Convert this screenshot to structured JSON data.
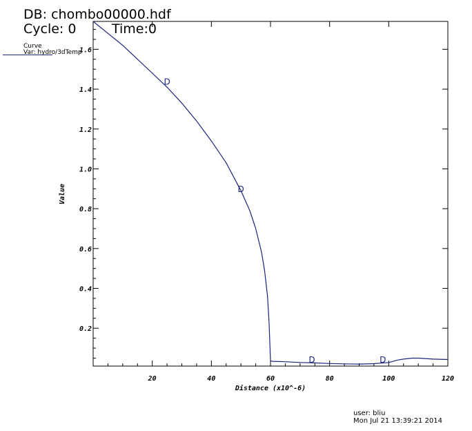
{
  "header": {
    "db": "DB: chombo00000.hdf",
    "cycle": "Cycle: 0",
    "time": "Time:0"
  },
  "legend": {
    "title": "Curve",
    "var": "Var: hydro/3dTemp"
  },
  "footer": {
    "user": "user: bliu",
    "date": "Mon Jul 21 13:39:21 2014"
  },
  "colors": {
    "curve": "#1a237e",
    "axis": "#000000"
  },
  "chart_data": {
    "type": "line",
    "title": "",
    "xlabel": "Distance (x10^-6)",
    "ylabel": "Value",
    "xlim": [
      0,
      120
    ],
    "ylim": [
      0.01,
      1.74
    ],
    "xticks": [
      20,
      40,
      60,
      80,
      100,
      120
    ],
    "yticks": [
      0.2,
      0.4,
      0.6,
      0.8,
      1.0,
      1.2,
      1.4,
      1.6
    ],
    "ytick_labels": [
      "0.2",
      "0.4",
      "0.6",
      "0.8",
      "1.0",
      "1.2",
      "1.4",
      "1.6"
    ],
    "xtick_labels": [
      "20",
      "40",
      "60",
      "80",
      "100",
      "120"
    ],
    "grid": false,
    "series": [
      {
        "x": [
          0,
          5,
          10,
          15,
          20,
          25,
          30,
          35,
          40,
          45,
          50,
          53,
          55,
          57,
          58,
          59,
          59.5,
          60,
          60.5,
          65,
          70,
          75,
          80,
          85,
          90,
          95,
          100,
          103,
          105,
          108,
          110,
          115,
          120
        ],
        "y": [
          1.74,
          1.68,
          1.62,
          1.55,
          1.48,
          1.41,
          1.33,
          1.24,
          1.14,
          1.03,
          0.89,
          0.79,
          0.7,
          0.58,
          0.49,
          0.36,
          0.23,
          0.037,
          0.034,
          0.032,
          0.028,
          0.026,
          0.023,
          0.021,
          0.02,
          0.022,
          0.028,
          0.04,
          0.045,
          0.05,
          0.05,
          0.045,
          0.043
        ],
        "markers": [
          {
            "x": 25,
            "y": 1.43,
            "label": "D"
          },
          {
            "x": 50,
            "y": 0.89,
            "label": "D"
          },
          {
            "x": 74,
            "y": 0.035,
            "label": "D"
          },
          {
            "x": 98,
            "y": 0.035,
            "label": "D"
          }
        ]
      }
    ]
  }
}
